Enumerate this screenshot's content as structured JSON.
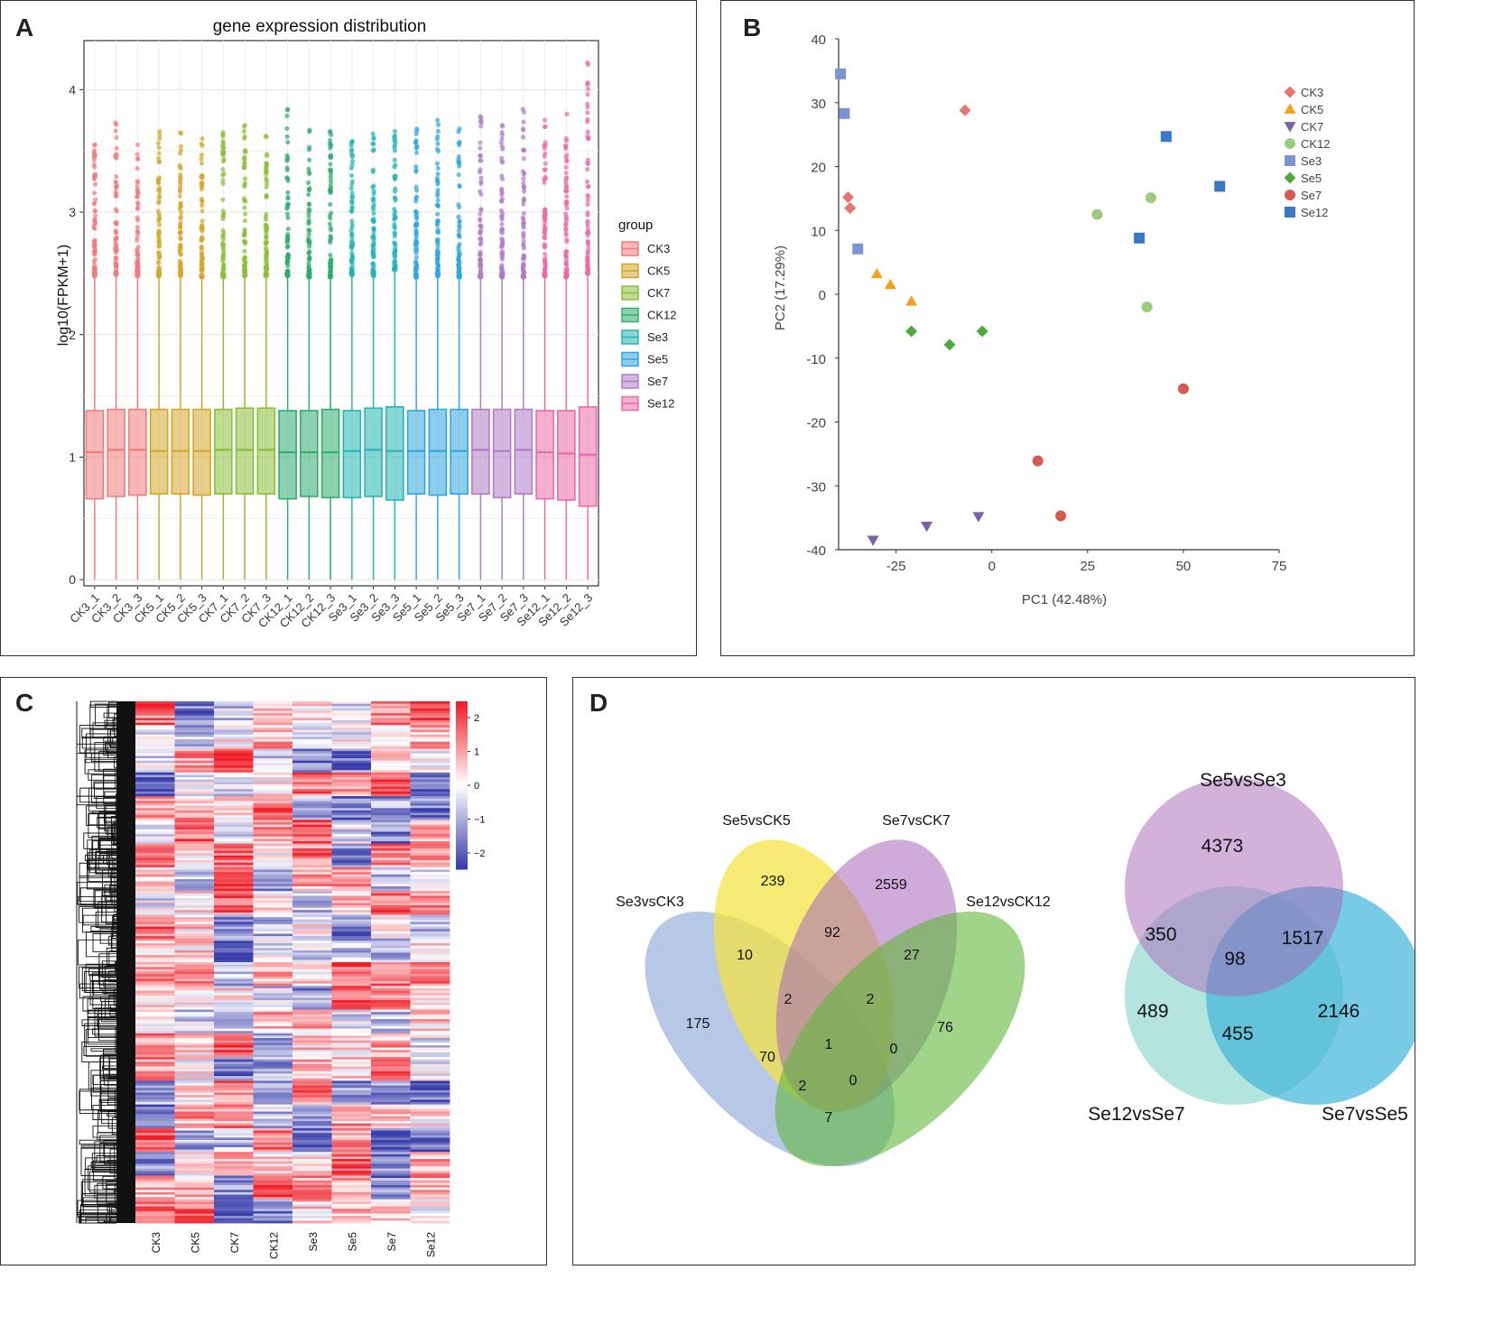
{
  "panels": {
    "A": "A",
    "B": "B",
    "C": "C",
    "D": "D"
  },
  "colors": {
    "CK3": "#F07C7C",
    "CK5": "#D4A62A",
    "CK7": "#8BBF3A",
    "CK12": "#2EAD6B",
    "Se3": "#25B5B5",
    "Se5": "#2FA6E0",
    "Se7": "#B07CC6",
    "Se12": "#E96BAA",
    "pca_CK3": "#E8736F",
    "pca_CK5": "#F3A11D",
    "pca_CK7": "#7B61A8",
    "pca_CK12": "#9ACD7A",
    "pca_Se3": "#7B93D3",
    "pca_Se5": "#4EAA3C",
    "pca_Se7": "#D65A4F",
    "pca_Se12": "#3A78C3"
  },
  "chart_data": [
    {
      "type": "box",
      "title": "gene expression distribution",
      "xlabel": "",
      "ylabel": "log10(FPKM+1)",
      "ylim": [
        -0.05,
        4.4
      ],
      "yticks": [
        0,
        1,
        2,
        3,
        4
      ],
      "legend_title": "group",
      "legend": [
        "CK3",
        "CK5",
        "CK7",
        "CK12",
        "Se3",
        "Se5",
        "Se7",
        "Se12"
      ],
      "samples": [
        {
          "name": "CK3_1",
          "group": "CK3",
          "q1": 0.66,
          "median": 1.04,
          "q3": 1.38,
          "whisker_hi": 2.48,
          "max": 3.55
        },
        {
          "name": "CK3_2",
          "group": "CK3",
          "q1": 0.68,
          "median": 1.06,
          "q3": 1.39,
          "whisker_hi": 2.49,
          "max": 3.73
        },
        {
          "name": "CK3_3",
          "group": "CK3",
          "q1": 0.69,
          "median": 1.06,
          "q3": 1.39,
          "whisker_hi": 2.48,
          "max": 3.55
        },
        {
          "name": "CK5_1",
          "group": "CK5",
          "q1": 0.7,
          "median": 1.05,
          "q3": 1.39,
          "whisker_hi": 2.48,
          "max": 3.66
        },
        {
          "name": "CK5_2",
          "group": "CK5",
          "q1": 0.7,
          "median": 1.05,
          "q3": 1.39,
          "whisker_hi": 2.48,
          "max": 3.65
        },
        {
          "name": "CK5_3",
          "group": "CK5",
          "q1": 0.69,
          "median": 1.05,
          "q3": 1.39,
          "whisker_hi": 2.47,
          "max": 3.6
        },
        {
          "name": "CK7_1",
          "group": "CK7",
          "q1": 0.7,
          "median": 1.06,
          "q3": 1.39,
          "whisker_hi": 2.47,
          "max": 3.65
        },
        {
          "name": "CK7_2",
          "group": "CK7",
          "q1": 0.7,
          "median": 1.06,
          "q3": 1.4,
          "whisker_hi": 2.48,
          "max": 3.71
        },
        {
          "name": "CK7_3",
          "group": "CK7",
          "q1": 0.7,
          "median": 1.06,
          "q3": 1.4,
          "whisker_hi": 2.48,
          "max": 3.62
        },
        {
          "name": "CK12_1",
          "group": "CK12",
          "q1": 0.66,
          "median": 1.04,
          "q3": 1.38,
          "whisker_hi": 2.48,
          "max": 3.84
        },
        {
          "name": "CK12_2",
          "group": "CK12",
          "q1": 0.68,
          "median": 1.04,
          "q3": 1.38,
          "whisker_hi": 2.47,
          "max": 3.67
        },
        {
          "name": "CK12_3",
          "group": "CK12",
          "q1": 0.67,
          "median": 1.04,
          "q3": 1.39,
          "whisker_hi": 2.47,
          "max": 3.66
        },
        {
          "name": "Se3_1",
          "group": "Se3",
          "q1": 0.67,
          "median": 1.05,
          "q3": 1.38,
          "whisker_hi": 2.49,
          "max": 3.58
        },
        {
          "name": "Se3_2",
          "group": "Se3",
          "q1": 0.68,
          "median": 1.06,
          "q3": 1.4,
          "whisker_hi": 2.48,
          "max": 3.64
        },
        {
          "name": "Se3_3",
          "group": "Se3",
          "q1": 0.65,
          "median": 1.05,
          "q3": 1.41,
          "whisker_hi": 2.53,
          "max": 3.66
        },
        {
          "name": "Se5_1",
          "group": "Se5",
          "q1": 0.7,
          "median": 1.05,
          "q3": 1.38,
          "whisker_hi": 2.47,
          "max": 3.68
        },
        {
          "name": "Se5_2",
          "group": "Se5",
          "q1": 0.69,
          "median": 1.05,
          "q3": 1.39,
          "whisker_hi": 2.48,
          "max": 3.75
        },
        {
          "name": "Se5_3",
          "group": "Se5",
          "q1": 0.7,
          "median": 1.05,
          "q3": 1.39,
          "whisker_hi": 2.47,
          "max": 3.68
        },
        {
          "name": "Se7_1",
          "group": "Se7",
          "q1": 0.7,
          "median": 1.06,
          "q3": 1.39,
          "whisker_hi": 2.47,
          "max": 3.78
        },
        {
          "name": "Se7_2",
          "group": "Se7",
          "q1": 0.67,
          "median": 1.05,
          "q3": 1.39,
          "whisker_hi": 2.47,
          "max": 3.71
        },
        {
          "name": "Se7_3",
          "group": "Se7",
          "q1": 0.7,
          "median": 1.06,
          "q3": 1.39,
          "whisker_hi": 2.47,
          "max": 3.84
        },
        {
          "name": "Se12_1",
          "group": "Se12",
          "q1": 0.66,
          "median": 1.04,
          "q3": 1.38,
          "whisker_hi": 2.48,
          "max": 3.75
        },
        {
          "name": "Se12_2",
          "group": "Se12",
          "q1": 0.65,
          "median": 1.03,
          "q3": 1.38,
          "whisker_hi": 2.47,
          "max": 3.8
        },
        {
          "name": "Se12_3",
          "group": "Se12",
          "q1": 0.6,
          "median": 1.02,
          "q3": 1.41,
          "whisker_hi": 2.5,
          "max": 4.22
        }
      ]
    },
    {
      "type": "scatter",
      "title": "",
      "xlabel": "PC1 (42.48%)",
      "ylabel": "PC2 (17.29%)",
      "xlim": [
        -40,
        75
      ],
      "ylim": [
        -40,
        40
      ],
      "xticks": [
        -25,
        0,
        25,
        50,
        75
      ],
      "yticks": [
        40,
        30,
        20,
        10,
        0,
        -10,
        -20,
        -30,
        -40
      ],
      "legend": [
        "CK3",
        "CK5",
        "CK7",
        "CK12",
        "Se3",
        "Se5",
        "Se7",
        "Se12"
      ],
      "series": [
        {
          "name": "CK3",
          "shape": "diamond",
          "points": [
            [
              -37.5,
              15.2
            ],
            [
              -37,
              13.5
            ],
            [
              -7,
              28.8
            ]
          ]
        },
        {
          "name": "CK5",
          "shape": "triangle-up",
          "points": [
            [
              -30,
              3.2
            ],
            [
              -26.5,
              1.5
            ],
            [
              -21,
              -1.1
            ]
          ]
        },
        {
          "name": "CK7",
          "shape": "triangle-down",
          "points": [
            [
              -31,
              -38.5
            ],
            [
              -17,
              -36.3
            ],
            [
              -3.5,
              -34.8
            ]
          ]
        },
        {
          "name": "CK12",
          "shape": "circle",
          "points": [
            [
              27.5,
              12.5
            ],
            [
              41.5,
              15.1
            ],
            [
              40.5,
              -2
            ]
          ]
        },
        {
          "name": "Se3",
          "shape": "square",
          "points": [
            [
              -39.5,
              34.5
            ],
            [
              -38.5,
              28.3
            ],
            [
              -35,
              7.1
            ]
          ]
        },
        {
          "name": "Se5",
          "shape": "diamond",
          "points": [
            [
              -21,
              -5.8
            ],
            [
              -11,
              -7.9
            ],
            [
              -2.5,
              -5.8
            ]
          ]
        },
        {
          "name": "Se7",
          "shape": "circle",
          "points": [
            [
              50,
              -14.8
            ],
            [
              12,
              -26.1
            ],
            [
              18,
              -34.7
            ]
          ]
        },
        {
          "name": "Se12",
          "shape": "square",
          "points": [
            [
              45.5,
              24.7
            ],
            [
              59.5,
              16.9
            ],
            [
              38.5,
              8.8
            ]
          ]
        }
      ]
    },
    {
      "type": "heatmap",
      "title": "",
      "columns": [
        "CK3",
        "CK5",
        "CK7",
        "CK12",
        "Se3",
        "Se5",
        "Se7",
        "Se12"
      ],
      "colorbar_ticks": [
        "2",
        "1",
        "0",
        "−1",
        "−2"
      ],
      "color_range": [
        -2,
        2
      ]
    },
    {
      "type": "venn",
      "sets": [
        "Se3vsCK3",
        "Se5vsCK5",
        "Se7vsCK7",
        "Se12vsCK12"
      ],
      "regions": [
        {
          "sets": "Se3vsCK3 only",
          "value": "175"
        },
        {
          "sets": "Se5vsCK5 only",
          "value": "239"
        },
        {
          "sets": "Se7vsCK7 only",
          "value": "2559"
        },
        {
          "sets": "Se12vsCK12 only",
          "value": "76"
        },
        {
          "sets": "Se5vsCK5 & Se7vsCK7",
          "value": "92"
        },
        {
          "sets": "Se3vsCK3 & Se5vsCK5",
          "value": "10"
        },
        {
          "sets": "Se7vsCK7 & Se12vsCK12",
          "value": "27"
        },
        {
          "sets": "Se3vsCK3 & Se5vsCK5 & Se7vsCK7",
          "value": "2"
        },
        {
          "sets": "Se5vsCK5 & Se7vsCK7 & Se12vsCK12",
          "value": "2"
        },
        {
          "sets": "all four",
          "value": "1"
        },
        {
          "sets": "Se3vsCK3 & Se7vsCK7",
          "value": "70"
        },
        {
          "sets": "Se5vsCK5 & Se12vsCK12",
          "value": "0"
        },
        {
          "sets": "Se3vsCK3 & Se7vsCK7 & Se12vsCK12",
          "value": "2"
        },
        {
          "sets": "Se3vsCK3 & Se5vsCK5 & Se12vsCK12",
          "value": "0"
        },
        {
          "sets": "Se3vsCK3 & Se12vsCK12",
          "value": "7"
        }
      ]
    },
    {
      "type": "venn",
      "sets": [
        "Se5vsSe3",
        "Se12vsSe7",
        "Se7vsSe5"
      ],
      "regions": [
        {
          "sets": "Se5vsSe3 only",
          "value": "4373"
        },
        {
          "sets": "Se5vsSe3 & Se12vsSe7",
          "value": "350"
        },
        {
          "sets": "Se5vsSe3 & Se7vsSe5",
          "value": "1517"
        },
        {
          "sets": "all three",
          "value": "98"
        },
        {
          "sets": "Se12vsSe7 only",
          "value": "489"
        },
        {
          "sets": "Se7vsSe5 only",
          "value": "2146"
        },
        {
          "sets": "Se12vsSe7 & Se7vsSe5",
          "value": "455"
        }
      ]
    }
  ]
}
